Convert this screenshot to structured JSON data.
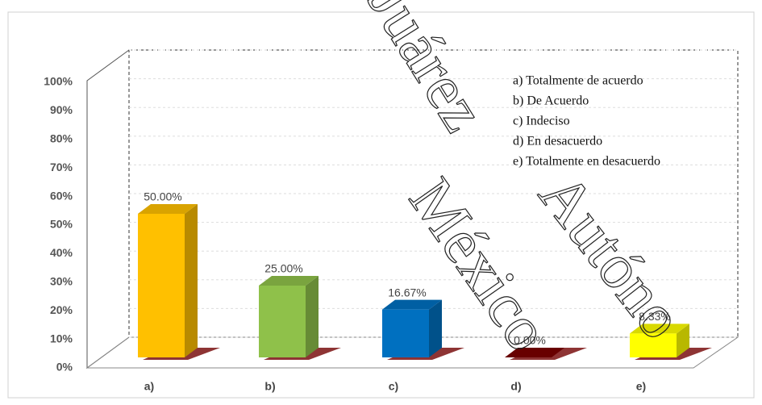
{
  "chart_data": {
    "type": "bar3d",
    "categories": [
      "a)",
      "b)",
      "c)",
      "d)",
      "e)"
    ],
    "values": [
      50,
      25,
      16.67,
      0,
      8.33
    ],
    "value_labels": [
      "50.00%",
      "25.00%",
      "16.67%",
      "0.00%",
      "8.33%"
    ],
    "colors": [
      "#ffc000",
      "#8fc14a",
      "#0070c0",
      "#7a0000",
      "#ffff00"
    ],
    "ylim": [
      0,
      100
    ],
    "yticks": [
      {
        "value": 0,
        "label": "0%"
      },
      {
        "value": 10,
        "label": "10%"
      },
      {
        "value": 20,
        "label": "20%"
      },
      {
        "value": 30,
        "label": "30%"
      },
      {
        "value": 40,
        "label": "40%"
      },
      {
        "value": 50,
        "label": "50%"
      },
      {
        "value": 60,
        "label": "60%"
      },
      {
        "value": 70,
        "label": "70%"
      },
      {
        "value": 80,
        "label": "80%"
      },
      {
        "value": 90,
        "label": "90%"
      },
      {
        "value": 100,
        "label": "100%"
      }
    ],
    "grid": true,
    "legend_text": [
      "a) Totalmente de acuerdo",
      "b) De Acuerdo",
      "c) Indeciso",
      "d) En desacuerdo",
      "e) Totalmente en desacuerdo"
    ],
    "watermark": [
      "Juárez",
      "Autóno",
      "México"
    ]
  }
}
